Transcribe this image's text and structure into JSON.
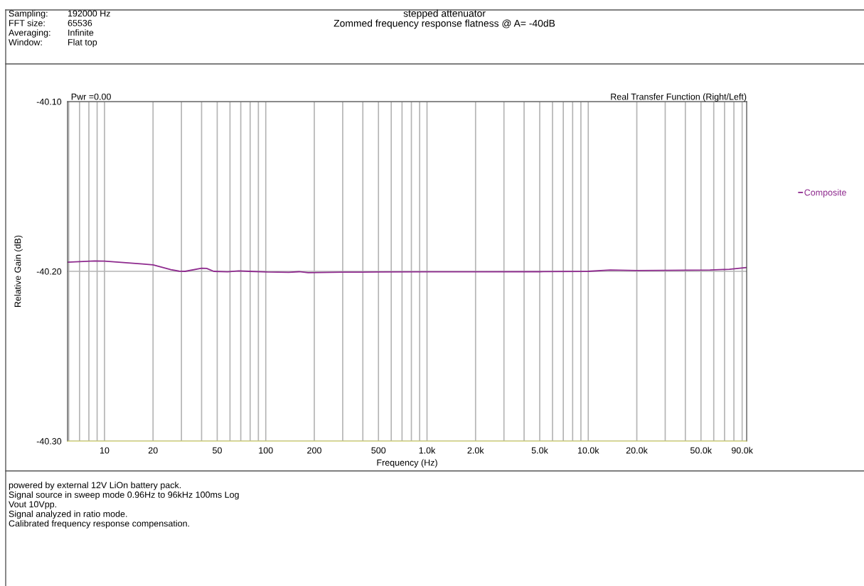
{
  "chart_data": {
    "type": "line",
    "title": "stepped attenuator",
    "subtitle": "Zommed frequency response flatness @ A= -40dB",
    "xlabel": "Frequency (Hz)",
    "ylabel": "Relative Gain (dB)",
    "log": "x",
    "xlim": [
      5.9,
      96000
    ],
    "ylim": [
      -40.3,
      -40.1
    ],
    "xticks": [
      {
        "value": 6,
        "label": null
      },
      {
        "value": 7,
        "label": null
      },
      {
        "value": 8,
        "label": null
      },
      {
        "value": 9,
        "label": null
      },
      10,
      20,
      {
        "value": 30,
        "label": null
      },
      {
        "value": 40,
        "label": null
      },
      50,
      {
        "value": 60,
        "label": null
      },
      {
        "value": 70,
        "label": null
      },
      {
        "value": 80,
        "label": null
      },
      {
        "value": 90,
        "label": null
      },
      100,
      200,
      {
        "value": 300,
        "label": null
      },
      {
        "value": 400,
        "label": null
      },
      500,
      {
        "value": 600,
        "label": null
      },
      {
        "value": 700,
        "label": null
      },
      {
        "value": 800,
        "label": null
      },
      {
        "value": 900,
        "label": null
      },
      {
        "value": 1000,
        "label": "1.0k"
      },
      {
        "value": 2000,
        "label": "2.0k"
      },
      {
        "value": 3000,
        "label": null
      },
      {
        "value": 4000,
        "label": null
      },
      {
        "value": 5000,
        "label": "5.0k"
      },
      {
        "value": 6000,
        "label": null
      },
      {
        "value": 7000,
        "label": null
      },
      {
        "value": 8000,
        "label": null
      },
      {
        "value": 9000,
        "label": null
      },
      {
        "value": 10000,
        "label": "10.0k"
      },
      {
        "value": 20000,
        "label": "20.0k"
      },
      {
        "value": 30000,
        "label": null
      },
      {
        "value": 40000,
        "label": null
      },
      {
        "value": 50000,
        "label": "50.0k"
      },
      {
        "value": 60000,
        "label": null
      },
      {
        "value": 70000,
        "label": null
      },
      {
        "value": 80000,
        "label": null
      },
      {
        "value": 90000,
        "label": "90.0k"
      }
    ],
    "yticks": [
      {
        "value": -40.3,
        "label": "-40.30"
      },
      {
        "value": -40.2,
        "label": "-40.20"
      },
      {
        "value": -40.1,
        "label": "-40.10"
      }
    ],
    "grid": true,
    "legend": "right",
    "series": [
      {
        "name": "Composite",
        "color": "#8e2a8e",
        "x": [
          5.9,
          8.7,
          10,
          17.2,
          20,
          25.8,
          29,
          31.6,
          40,
          43,
          47.6,
          58,
          68,
          79,
          102,
          139,
          161,
          183,
          300,
          500,
          1000,
          2000,
          5000,
          10000,
          13700,
          20000,
          30000,
          57000,
          75000,
          95000
        ],
        "values": [
          -40.1946,
          -40.1939,
          -40.194,
          -40.1957,
          -40.1962,
          -40.199,
          -40.1999,
          -40.2,
          -40.1982,
          -40.1983,
          -40.2,
          -40.2003,
          -40.1997,
          -40.2,
          -40.2004,
          -40.2006,
          -40.2002,
          -40.2008,
          -40.2005,
          -40.2004,
          -40.2003,
          -40.2003,
          -40.2002,
          -40.2,
          -40.1992,
          -40.1995,
          -40.1994,
          -40.1992,
          -40.1988,
          -40.1978
        ]
      }
    ],
    "annotations": [
      "Sampling:",
      "192000 Hz",
      "FFT size:",
      "65536",
      "Averaging:",
      "Infinite",
      "Window:",
      "Flat top",
      "Pwr =0.00",
      "Real Transfer Function (Right/Left)",
      "powered by external 12V LiOn battery pack.",
      "Signal source in sweep mode 0.96Hz to 96kHz 100ms Log",
      "Vout 10Vpp.",
      "Signal analyzed in ratio mode.",
      "Calibrated frequency response compensation."
    ]
  }
}
